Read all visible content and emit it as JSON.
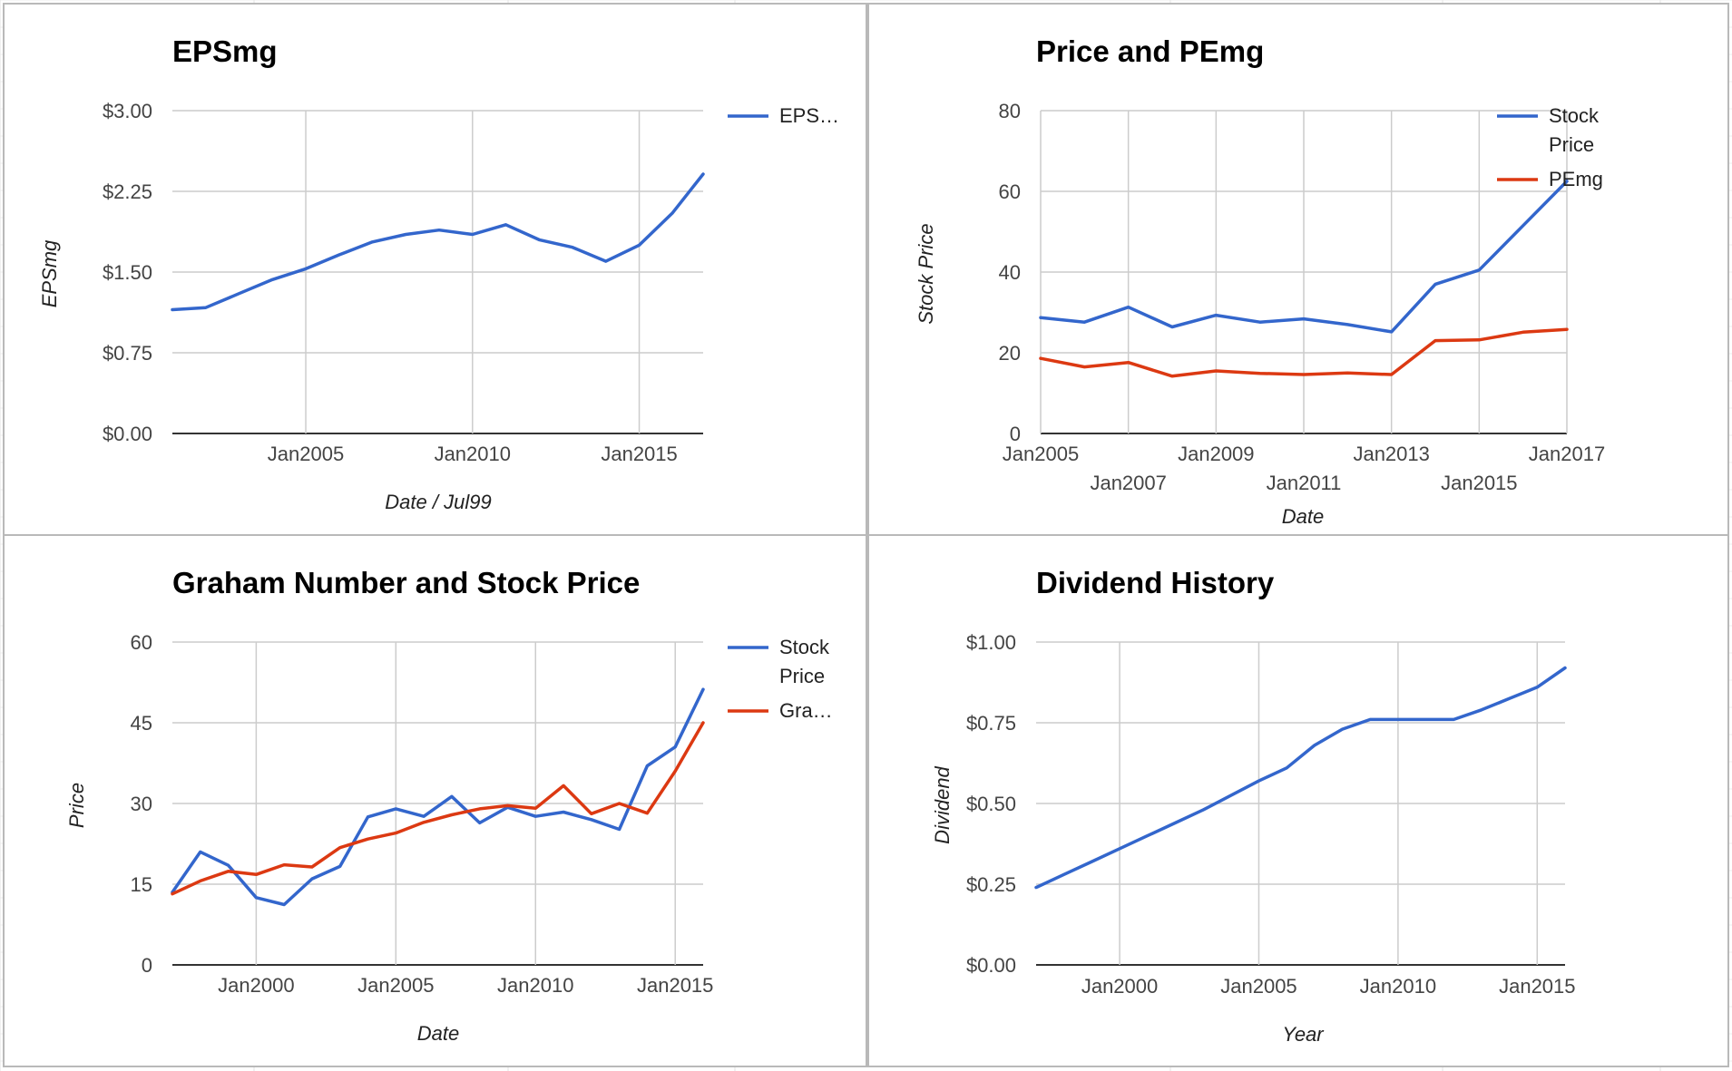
{
  "chart_data": [
    {
      "type": "line",
      "title": "EPSmg",
      "xlabel": "Date / Jul99",
      "ylabel": "EPSmg",
      "x_axis": {
        "min": "2001-01",
        "max": "2016-12",
        "ticks": [
          "2005-01",
          "2010-01",
          "2015-01"
        ],
        "tick_labels": [
          "Jan2005",
          "Jan2010",
          "Jan2015"
        ]
      },
      "y_axis": {
        "min": 0,
        "max": 3,
        "ticks": [
          0,
          0.75,
          1.5,
          2.25,
          3
        ],
        "tick_labels": [
          "$0.00",
          "$0.75",
          "$1.50",
          "$2.25",
          "$3.00"
        ]
      },
      "grid": true,
      "legend_position": "right",
      "series": [
        {
          "name": "EPS…",
          "color": "#3366cc",
          "x": [
            "2001-01",
            "2002-01",
            "2003-01",
            "2004-01",
            "2005-01",
            "2006-01",
            "2007-01",
            "2008-01",
            "2009-01",
            "2010-01",
            "2011-01",
            "2012-01",
            "2013-01",
            "2014-01",
            "2015-01",
            "2016-01",
            "2016-12"
          ],
          "values": [
            1.15,
            1.17,
            1.3,
            1.43,
            1.53,
            1.66,
            1.78,
            1.85,
            1.89,
            1.85,
            1.94,
            1.8,
            1.73,
            1.6,
            1.75,
            2.05,
            2.41
          ]
        }
      ]
    },
    {
      "type": "line",
      "title": "Price and PEmg",
      "xlabel": "Date",
      "ylabel": "Stock Price",
      "x_axis": {
        "min": "2005-01",
        "max": "2017-01",
        "ticks": [
          "2005-01",
          "2007-01",
          "2009-01",
          "2011-01",
          "2013-01",
          "2015-01",
          "2017-01"
        ],
        "tick_labels": [
          "Jan2005",
          "Jan2007",
          "Jan2009",
          "Jan2011",
          "Jan2013",
          "Jan2015",
          "Jan2017"
        ]
      },
      "y_axis": {
        "min": 0,
        "max": 80,
        "ticks": [
          0,
          20,
          40,
          60,
          80
        ],
        "tick_labels": [
          "0",
          "20",
          "40",
          "60",
          "80"
        ]
      },
      "grid": true,
      "legend_position": "right",
      "series": [
        {
          "name": "Stock Price",
          "legend_lines": [
            "Stock",
            "Price"
          ],
          "color": "#3366cc",
          "x": [
            "2005-01",
            "2006-01",
            "2007-01",
            "2008-01",
            "2009-01",
            "2010-01",
            "2011-01",
            "2012-01",
            "2013-01",
            "2014-01",
            "2015-01",
            "2016-01",
            "2017-01"
          ],
          "values": [
            28.7,
            27.6,
            31.3,
            26.4,
            29.3,
            27.6,
            28.4,
            27.0,
            25.2,
            37.0,
            40.5,
            51.5,
            62.5
          ]
        },
        {
          "name": "PEmg",
          "legend_lines": [
            "PEmg"
          ],
          "color": "#dc3912",
          "x": [
            "2005-01",
            "2006-01",
            "2007-01",
            "2008-01",
            "2009-01",
            "2010-01",
            "2011-01",
            "2012-01",
            "2013-01",
            "2014-01",
            "2015-01",
            "2016-01",
            "2017-01"
          ],
          "values": [
            18.6,
            16.5,
            17.6,
            14.2,
            15.5,
            14.9,
            14.6,
            15.0,
            14.6,
            23.0,
            23.2,
            25.1,
            25.8
          ]
        }
      ]
    },
    {
      "type": "line",
      "title": "Graham Number and Stock Price",
      "xlabel": "Date",
      "ylabel": "Price",
      "x_axis": {
        "min": "1997-01",
        "max": "2016-01",
        "ticks": [
          "2000-01",
          "2005-01",
          "2010-01",
          "2015-01"
        ],
        "tick_labels": [
          "Jan2000",
          "Jan2005",
          "Jan2010",
          "Jan2015"
        ]
      },
      "y_axis": {
        "min": 0,
        "max": 60,
        "ticks": [
          0,
          15,
          30,
          45,
          60
        ],
        "tick_labels": [
          "0",
          "15",
          "30",
          "45",
          "60"
        ]
      },
      "grid": true,
      "legend_position": "right",
      "series": [
        {
          "name": "Stock Price",
          "legend_lines": [
            "Stock",
            "Price"
          ],
          "color": "#3366cc",
          "x": [
            "1997-01",
            "1998-01",
            "1999-01",
            "2000-01",
            "2001-01",
            "2002-01",
            "2003-01",
            "2004-01",
            "2005-01",
            "2006-01",
            "2007-01",
            "2008-01",
            "2009-01",
            "2010-01",
            "2011-01",
            "2012-01",
            "2013-01",
            "2014-01",
            "2015-01",
            "2016-01"
          ],
          "values": [
            13.5,
            21.0,
            18.5,
            12.5,
            11.2,
            16.0,
            18.3,
            27.5,
            29.0,
            27.6,
            31.3,
            26.4,
            29.3,
            27.6,
            28.4,
            27.0,
            25.2,
            37.0,
            40.5,
            51.2
          ]
        },
        {
          "name": "Gra…",
          "legend_lines": [
            "Gra…"
          ],
          "color": "#dc3912",
          "x": [
            "1997-01",
            "1998-01",
            "1999-01",
            "2000-01",
            "2001-01",
            "2002-01",
            "2003-01",
            "2004-01",
            "2005-01",
            "2006-01",
            "2007-01",
            "2008-01",
            "2009-01",
            "2010-01",
            "2011-01",
            "2012-01",
            "2013-01",
            "2014-01",
            "2015-01",
            "2016-01"
          ],
          "values": [
            13.2,
            15.6,
            17.4,
            16.8,
            18.6,
            18.2,
            21.8,
            23.4,
            24.5,
            26.5,
            27.9,
            29.0,
            29.6,
            29.1,
            33.3,
            28.1,
            30.0,
            28.2,
            36.0,
            45.0
          ]
        }
      ]
    },
    {
      "type": "line",
      "title": "Dividend History",
      "xlabel": "Year",
      "ylabel": "Dividend",
      "x_axis": {
        "min": "1997-01",
        "max": "2016-01",
        "ticks": [
          "2000-01",
          "2005-01",
          "2010-01",
          "2015-01"
        ],
        "tick_labels": [
          "Jan2000",
          "Jan2005",
          "Jan2010",
          "Jan2015"
        ]
      },
      "y_axis": {
        "min": 0,
        "max": 1,
        "ticks": [
          0,
          0.25,
          0.5,
          0.75,
          1
        ],
        "tick_labels": [
          "$0.00",
          "$0.25",
          "$0.50",
          "$0.75",
          "$1.00"
        ]
      },
      "grid": true,
      "legend_position": "none",
      "series": [
        {
          "color": "#3366cc",
          "x": [
            "1997-01",
            "1998-01",
            "1999-01",
            "2000-01",
            "2001-01",
            "2002-01",
            "2003-01",
            "2004-01",
            "2005-01",
            "2006-01",
            "2007-01",
            "2008-01",
            "2009-01",
            "2010-01",
            "2011-01",
            "2012-01",
            "2013-01",
            "2014-01",
            "2015-01",
            "2016-01"
          ],
          "values": [
            0.24,
            0.28,
            0.32,
            0.36,
            0.4,
            0.44,
            0.48,
            0.525,
            0.57,
            0.61,
            0.68,
            0.73,
            0.76,
            0.76,
            0.76,
            0.76,
            0.79,
            0.825,
            0.86,
            0.92
          ]
        }
      ]
    }
  ]
}
